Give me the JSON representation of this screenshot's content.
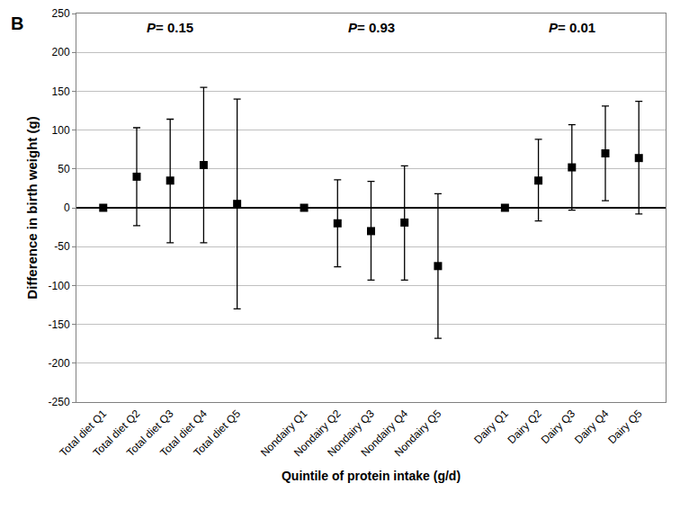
{
  "chart_data": {
    "type": "scatter",
    "panel_label": "B",
    "x_label": "Quintile of protein intake (g/d)",
    "y_label": "Difference in birth weight (g)",
    "categories": [
      "Total diet Q1",
      "Total diet Q2",
      "Total diet Q3",
      "Total diet Q4",
      "Total diet Q5",
      null,
      "Nondairy Q1",
      "Nondairy Q2",
      "Nondairy Q3",
      "Nondairy Q4",
      "Nondairy Q5",
      null,
      "Dairy Q1",
      "Dairy Q2",
      "Dairy Q3",
      "Dairy Q4",
      "Dairy Q5"
    ],
    "values": [
      0,
      40,
      35,
      55,
      5,
      null,
      0,
      -20,
      -30,
      -19,
      -75,
      null,
      0,
      35,
      52,
      70,
      64
    ],
    "ci_lower": [
      null,
      -23,
      -45,
      -45,
      -130,
      null,
      null,
      -76,
      -93,
      -93,
      -168,
      null,
      null,
      -17,
      -3,
      9,
      -8
    ],
    "ci_upper": [
      null,
      103,
      114,
      155,
      140,
      null,
      null,
      36,
      34,
      54,
      18,
      null,
      null,
      88,
      107,
      131,
      137
    ],
    "color": "#000000",
    "marker": "square",
    "ylim": [
      -250,
      250
    ],
    "yticks": [
      -250,
      -200,
      -150,
      -100,
      -50,
      0,
      50,
      100,
      150,
      200,
      250
    ],
    "grid": true,
    "annotations": [
      "P= 0.15",
      "P= 0.93",
      "P= 0.01"
    ]
  }
}
